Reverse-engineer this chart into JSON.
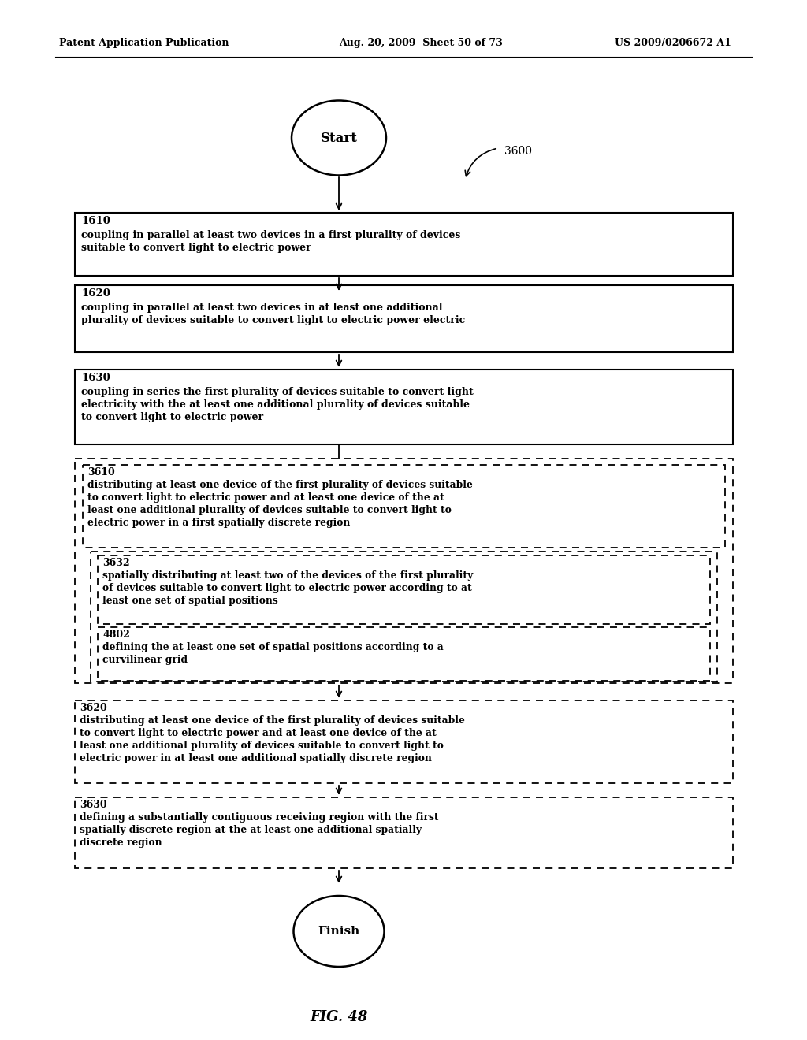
{
  "header_left": "Patent Application Publication",
  "header_mid": "Aug. 20, 2009  Sheet 50 of 73",
  "header_right": "US 2009/0206672 A1",
  "figure_label": "FIG. 48",
  "diagram_label": "3600",
  "start_label": "Start",
  "finish_label": "Finish",
  "bg_color": "#ffffff"
}
